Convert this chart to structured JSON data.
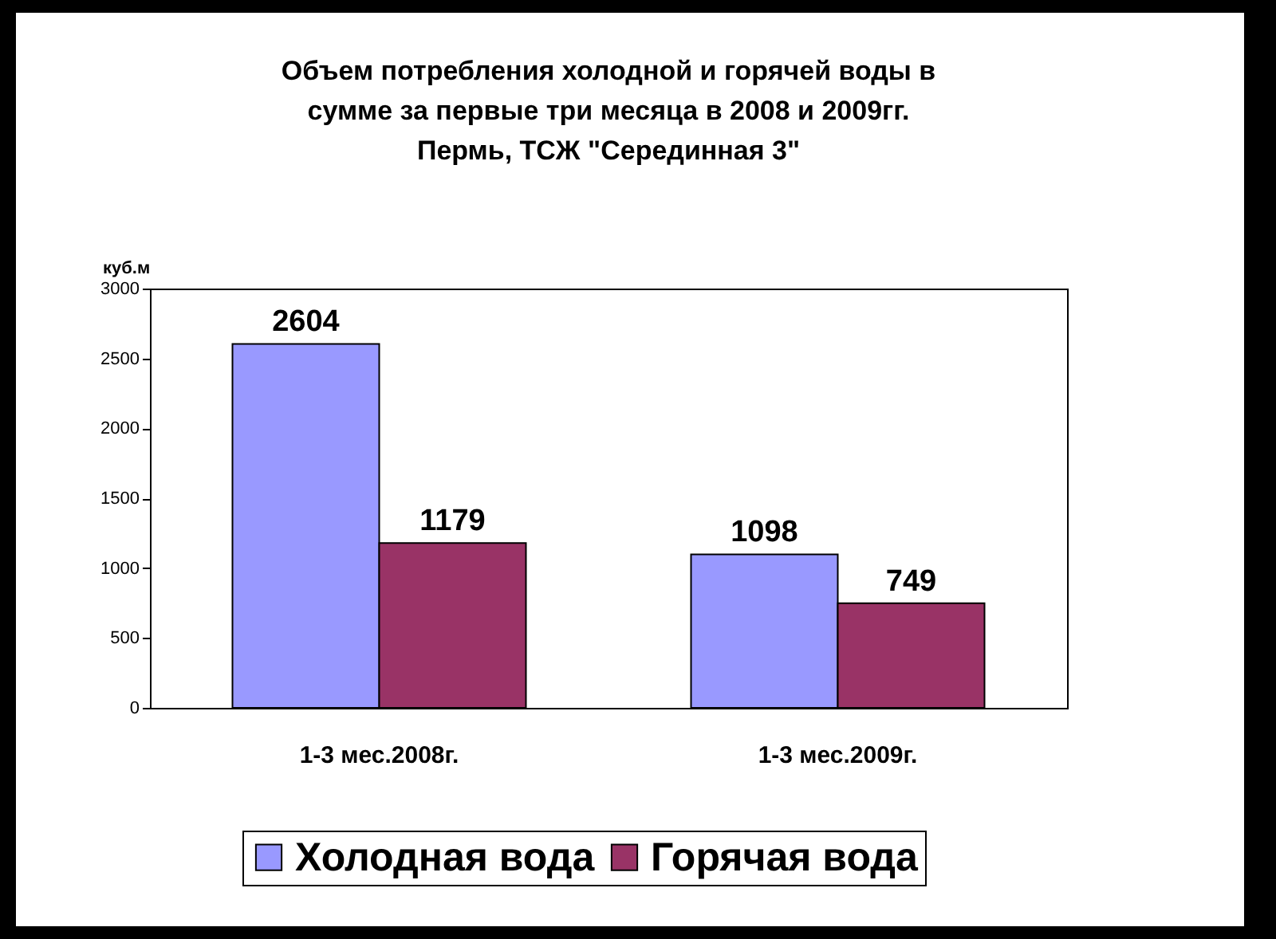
{
  "chart_data": {
    "type": "bar",
    "title": [
      "Объем потребления холодной и горячей воды в",
      "сумме за первые три месяца в 2008 и 2009гг.",
      "Пермь, ТСЖ \"Серединная 3\""
    ],
    "ylabel": "куб.м",
    "categories": [
      "1-3 мес.2008г.",
      "1-3 мес.2009г."
    ],
    "series": [
      {
        "name": "Холодная вода",
        "color": "#9999ff",
        "values": [
          2604,
          1098
        ]
      },
      {
        "name": "Горячая вода",
        "color": "#993366",
        "values": [
          1179,
          749
        ]
      }
    ],
    "ylim": [
      0,
      3000
    ],
    "yticks": [
      0,
      500,
      1000,
      1500,
      2000,
      2500,
      3000
    ],
    "grid": false,
    "legend": "bottom",
    "data_labels": true
  }
}
